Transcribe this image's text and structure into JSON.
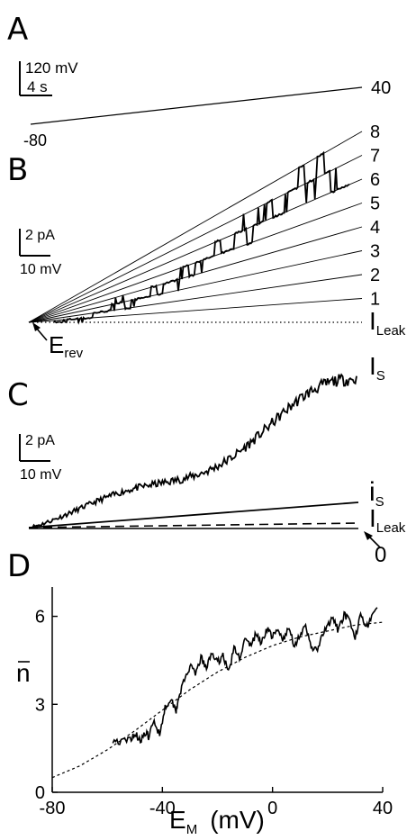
{
  "chart_data": [
    {
      "panel": "A",
      "type": "line",
      "scale_bar": {
        "vertical": "120 mV",
        "horizontal": "4 s"
      },
      "ramp": {
        "start_label": "-80",
        "end_label": "40"
      }
    },
    {
      "panel": "B",
      "type": "line",
      "scale_bar": {
        "vertical": "2 pA",
        "horizontal": "10 mV"
      },
      "reference_labels": [
        "8",
        "7",
        "6",
        "5",
        "4",
        "3",
        "2",
        "1"
      ],
      "leak_label": {
        "main": "I",
        "sub": "Leak"
      },
      "erev_label": {
        "main": "E",
        "sub": "rev"
      },
      "trace_levels": [
        0,
        0,
        1,
        1,
        1,
        1,
        2,
        2,
        2,
        3,
        3,
        2,
        3,
        3,
        3,
        4,
        3,
        4,
        4,
        4,
        5,
        4,
        5,
        5,
        5,
        6,
        5,
        5,
        6,
        6,
        5,
        6,
        6,
        7,
        6,
        6,
        7,
        7,
        8,
        7,
        7,
        8,
        7,
        6,
        6,
        6
      ]
    },
    {
      "panel": "C",
      "type": "line",
      "scale_bar": {
        "vertical": "2 pA",
        "horizontal": "10 mV"
      },
      "labels": {
        "I_S": {
          "main": "I",
          "sub": "S"
        },
        "i_s": {
          "main": "i",
          "sub": "S"
        },
        "leak": {
          "main": "I",
          "sub": "Leak"
        },
        "zero": "0"
      }
    },
    {
      "panel": "D",
      "type": "line",
      "xlabel": {
        "main": "E",
        "sub": "M",
        "unit": "(mV)"
      },
      "ylabel": "n",
      "xlim": [
        -80,
        40
      ],
      "ylim": [
        0,
        7
      ],
      "xticks": [
        "-80",
        "-40",
        "0",
        "40"
      ],
      "yticks": [
        "0",
        "3",
        "6"
      ],
      "series": [
        {
          "style": "solid",
          "x": [
            -58,
            -55,
            -52,
            -50,
            -48,
            -46,
            -45,
            -43,
            -41,
            -39,
            -37,
            -35,
            -34,
            -32,
            -30,
            -28,
            -26,
            -24,
            -22,
            -20,
            -18,
            -16,
            -14,
            -12,
            -10,
            -8,
            -6,
            -4,
            -2,
            0,
            2,
            4,
            6,
            8,
            10,
            12,
            14,
            16,
            18,
            20,
            22,
            24,
            26,
            28,
            30,
            32,
            34,
            36,
            38
          ],
          "y": [
            1.8,
            1.7,
            1.8,
            2.0,
            1.8,
            2.0,
            1.9,
            2.4,
            2.0,
            2.9,
            3.2,
            2.8,
            3.3,
            3.8,
            4.3,
            4.0,
            4.6,
            4.2,
            4.8,
            4.4,
            4.7,
            4.1,
            4.9,
            4.6,
            5.2,
            5.0,
            5.4,
            5.1,
            5.6,
            5.3,
            5.5,
            5.2,
            5.6,
            5.0,
            5.4,
            5.6,
            5.0,
            4.8,
            5.3,
            5.7,
            5.9,
            5.5,
            6.1,
            5.8,
            5.2,
            6.2,
            5.6,
            6.0,
            6.3
          ]
        },
        {
          "style": "dashed",
          "x": [
            -80,
            -70,
            -60,
            -50,
            -40,
            -30,
            -20,
            -10,
            0,
            10,
            20,
            30,
            40
          ],
          "y": [
            0.5,
            0.9,
            1.45,
            2.1,
            2.8,
            3.5,
            4.1,
            4.6,
            5.0,
            5.3,
            5.5,
            5.7,
            5.8
          ]
        }
      ]
    }
  ]
}
